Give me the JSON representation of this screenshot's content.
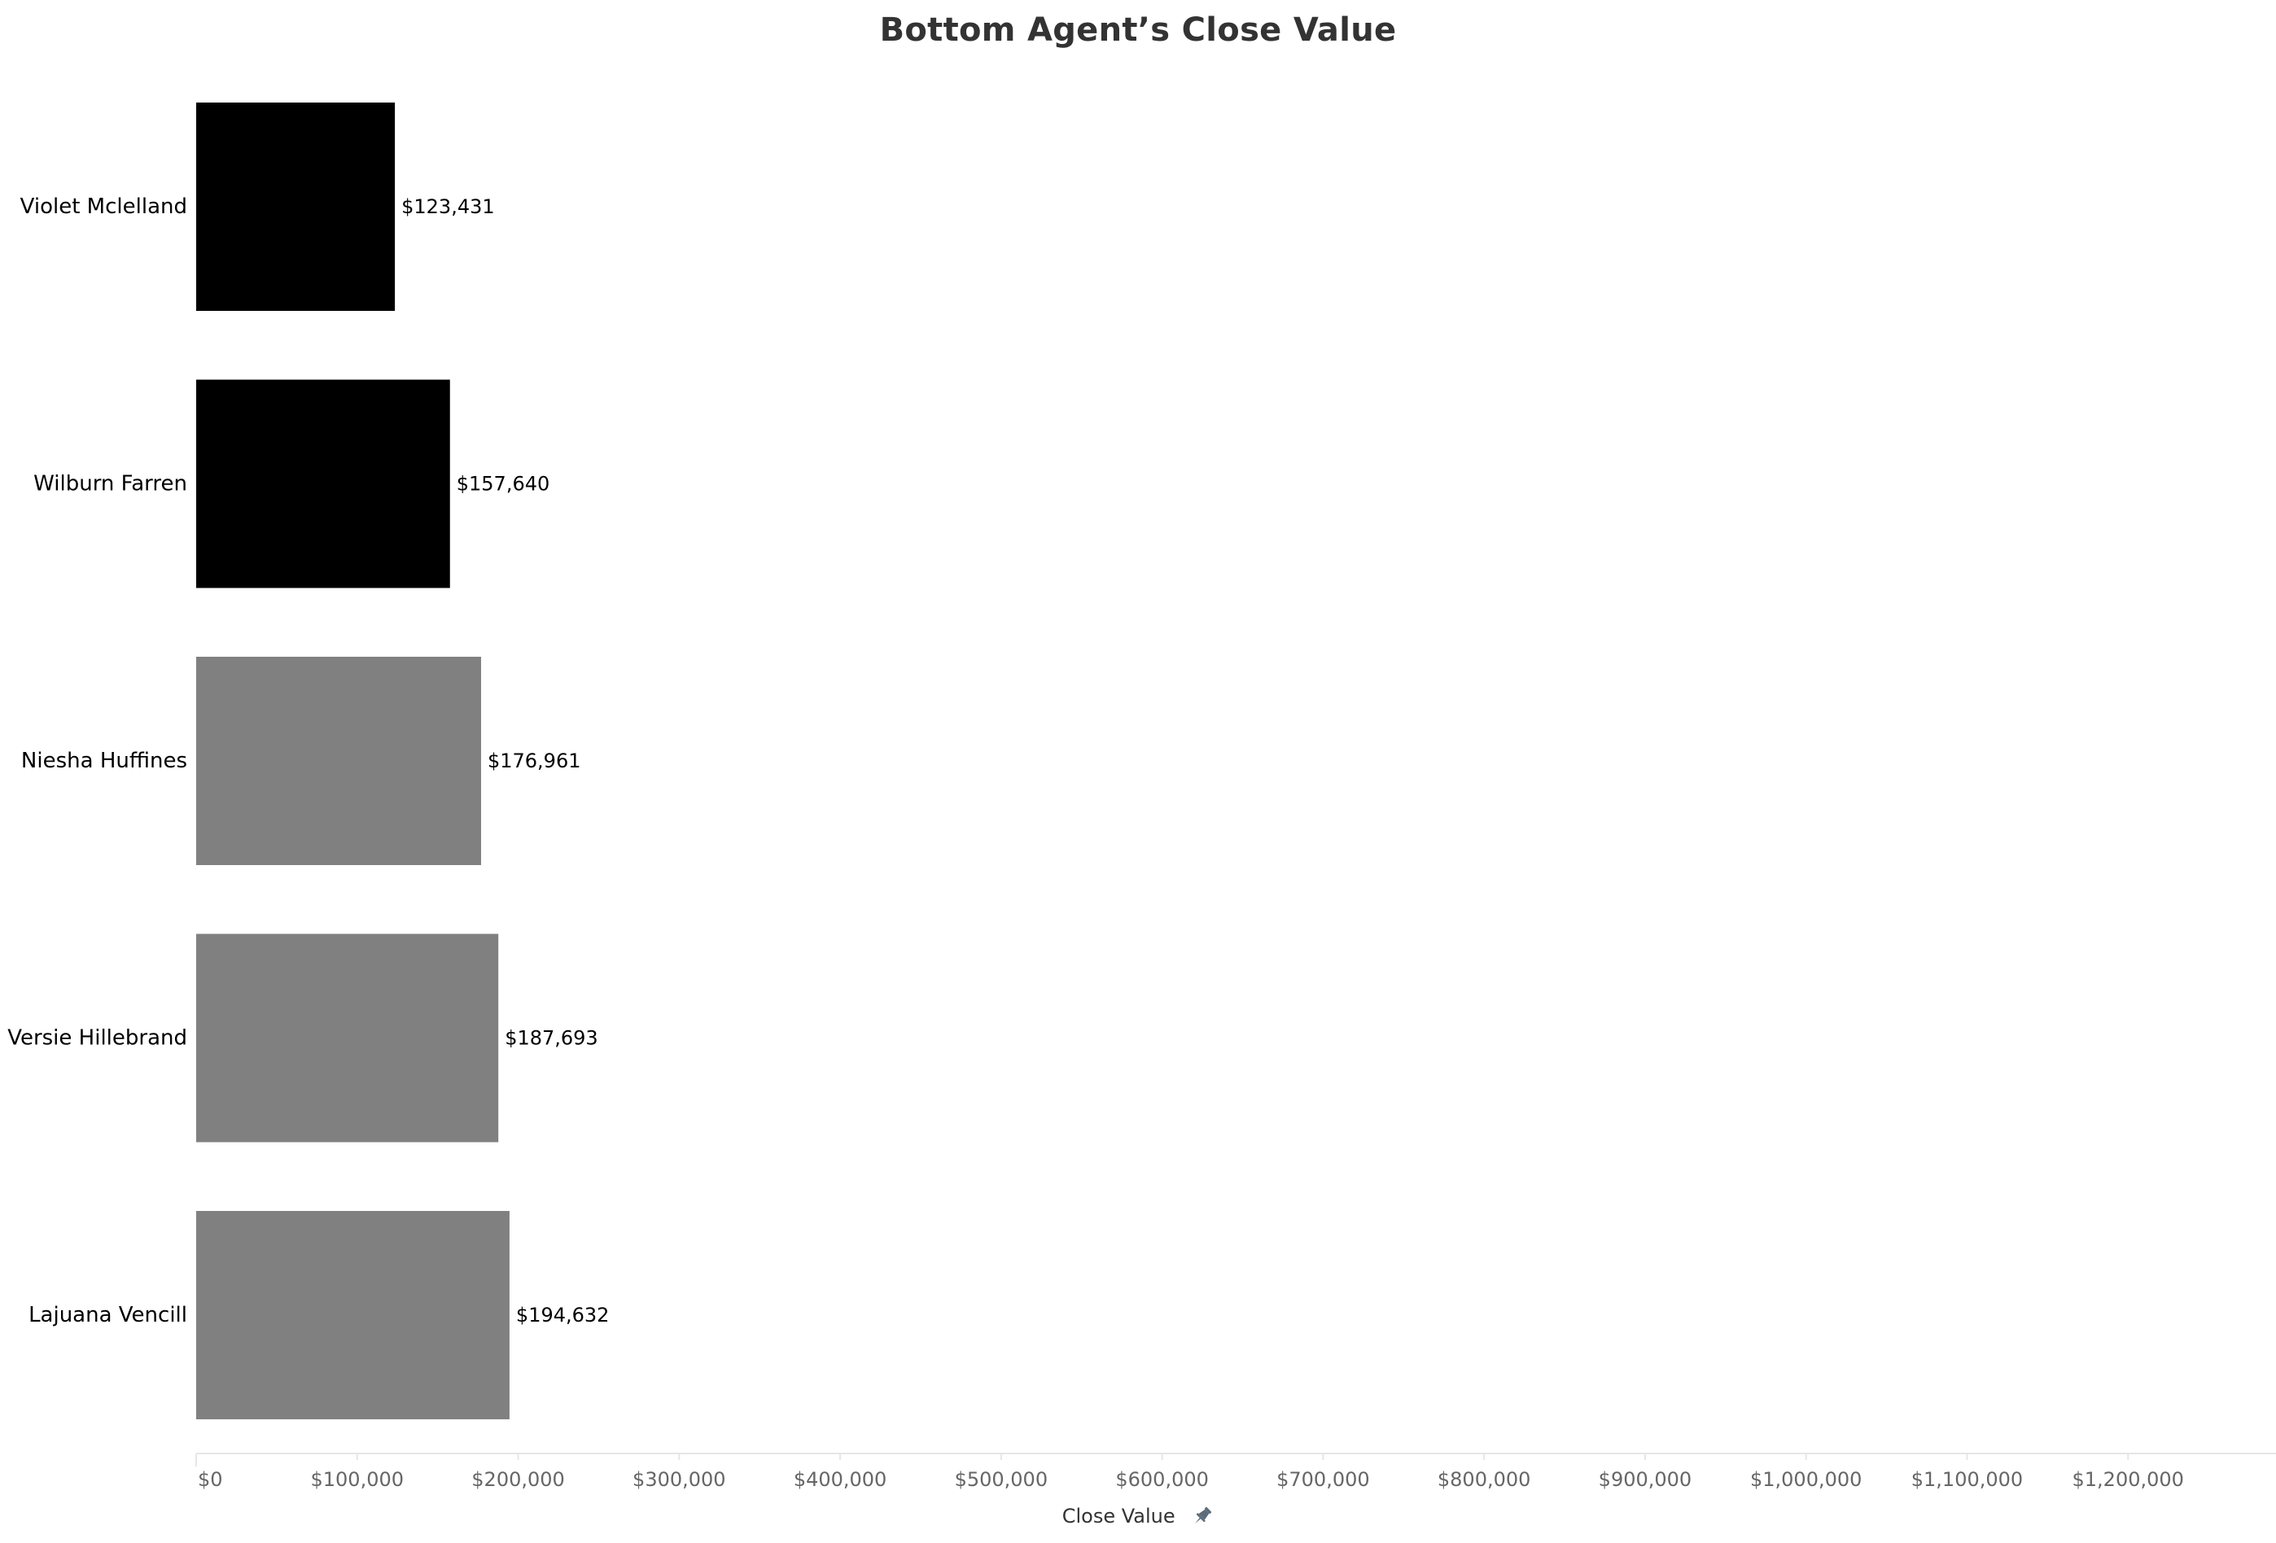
{
  "chart_data": {
    "type": "bar",
    "orientation": "horizontal",
    "title": "Bottom Agent’s Close Value",
    "xlabel": "Close Value",
    "ylabel": "",
    "categories": [
      "Violet Mclelland",
      "Wilburn Farren",
      "Niesha Huffines",
      "Versie Hillebrand",
      "Lajuana Vencill"
    ],
    "values": [
      123431,
      157640,
      176961,
      187693,
      194632
    ],
    "value_labels": [
      "$123,431",
      "$157,640",
      "$176,961",
      "$187,693",
      "$194,632"
    ],
    "bar_colors": [
      "#000000",
      "#000000",
      "#808080",
      "#808080",
      "#808080"
    ],
    "xlim": [
      0,
      1290000
    ],
    "x_ticks": [
      0,
      100000,
      200000,
      300000,
      400000,
      500000,
      600000,
      700000,
      800000,
      900000,
      1000000,
      1100000,
      1200000
    ],
    "x_tick_labels": [
      "$0",
      "$100,000",
      "$200,000",
      "$300,000",
      "$400,000",
      "$500,000",
      "$600,000",
      "$700,000",
      "$800,000",
      "$900,000",
      "$1,000,000",
      "$1,100,000",
      "$1,200,000"
    ],
    "grid": false,
    "legend": "none"
  },
  "icons": {
    "axis_pin": "pin-icon"
  },
  "colors": {
    "title": "#333333",
    "axis_line": "#e6e6e6",
    "tick_text": "#666666",
    "pin": "#5b6b7b"
  }
}
